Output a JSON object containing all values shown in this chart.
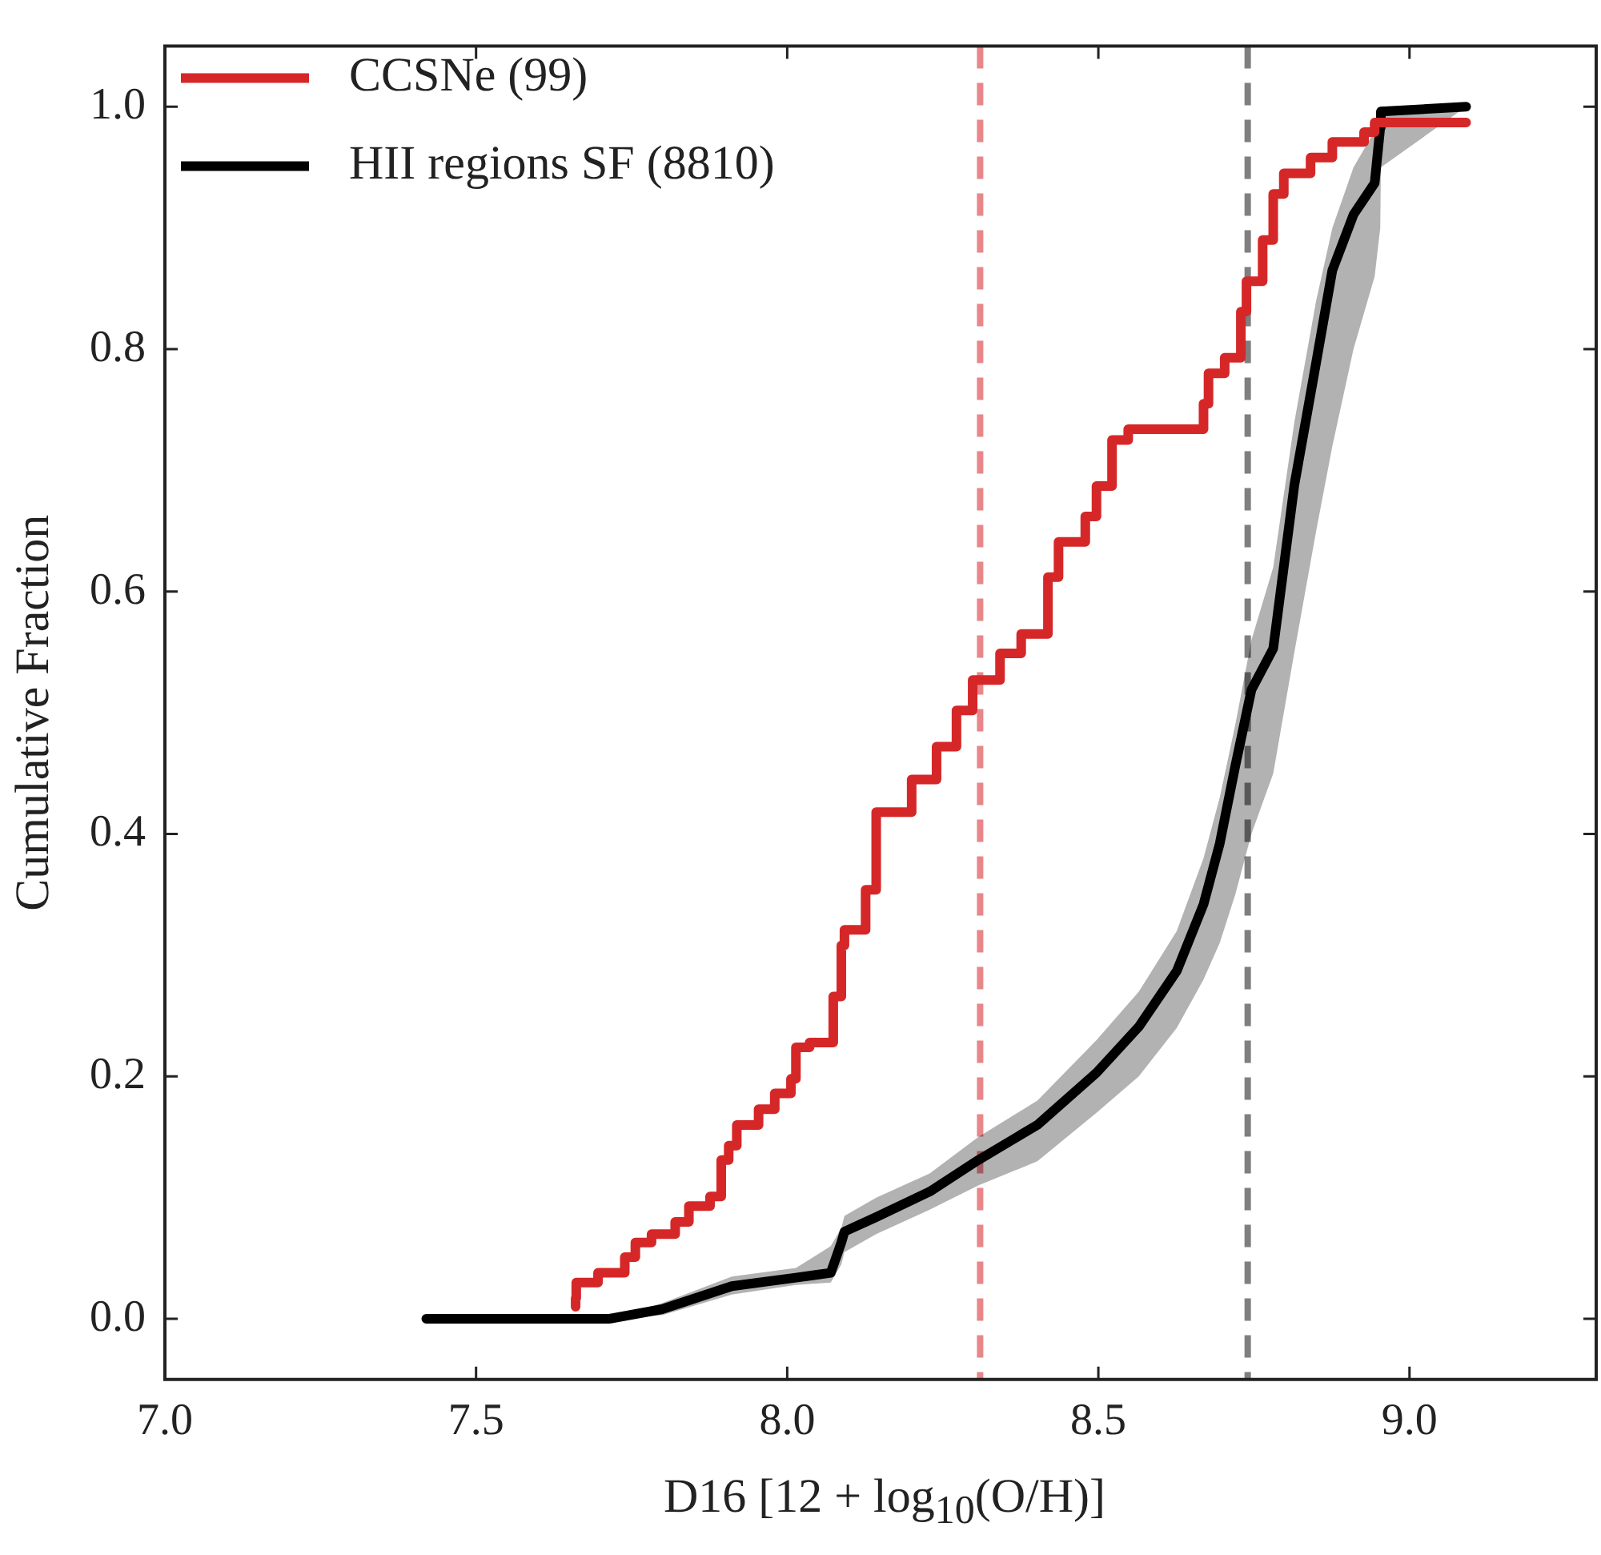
{
  "chart_data": {
    "type": "step",
    "xlabel": "D16 [12 + log$_{10}$(O/H)]",
    "ylabel": "Cumulative Fraction",
    "xlim": [
      7.0,
      9.3
    ],
    "ylim": [
      -0.05,
      1.05
    ],
    "xticks": [
      {
        "value": 7.0,
        "label": "7.0"
      },
      7.5,
      {
        "value": 8.0,
        "label": "8.0"
      },
      8.5,
      {
        "value": 9.0,
        "label": "9.0"
      }
    ],
    "yticks": [
      {
        "value": 0.0,
        "label": "0.0"
      },
      0.2,
      0.4,
      0.6,
      0.8,
      {
        "value": 1.0,
        "label": "1.0"
      }
    ],
    "legend": "top left",
    "grid": false,
    "marker": "none",
    "line_style": "solid",
    "series": [
      {
        "name": "CCSNe (99)",
        "color": "#d62728",
        "x": [
          7.66,
          7.661,
          7.696,
          7.739,
          7.756,
          7.782,
          7.82,
          7.842,
          7.876,
          7.894,
          7.906,
          7.919,
          7.954,
          7.98,
          8.006,
          8.014,
          8.036,
          8.074,
          8.087,
          8.092,
          8.126,
          8.143,
          8.2,
          8.24,
          8.272,
          8.298,
          8.342,
          8.376,
          8.419,
          8.436,
          8.479,
          8.497,
          8.522,
          8.548,
          8.669,
          8.677,
          8.703,
          8.729,
          8.738,
          8.764,
          8.781,
          8.798,
          8.841,
          8.876,
          8.927,
          8.944,
          8.988,
          9.091
        ],
        "values": [
          0.01,
          0.017,
          0.03,
          0.038,
          0.051,
          0.063,
          0.07,
          0.08,
          0.093,
          0.101,
          0.131,
          0.143,
          0.16,
          0.173,
          0.186,
          0.198,
          0.224,
          0.228,
          0.266,
          0.308,
          0.321,
          0.354,
          0.418,
          0.445,
          0.472,
          0.502,
          0.527,
          0.549,
          0.565,
          0.612,
          0.641,
          0.662,
          0.687,
          0.725,
          0.734,
          0.755,
          0.78,
          0.793,
          0.831,
          0.856,
          0.89,
          0.928,
          0.945,
          0.958,
          0.971,
          0.979,
          0.987,
          0.987
        ]
      },
      {
        "name": "HII regions SF (8810)",
        "color": "#000000",
        "type": "line",
        "x": [
          7.42,
          7.713,
          7.799,
          7.911,
          8.014,
          8.07,
          8.087,
          8.092,
          8.143,
          8.229,
          8.307,
          8.402,
          8.497,
          8.565,
          8.626,
          8.669,
          8.695,
          8.72,
          8.746,
          8.781,
          8.815,
          8.85,
          8.876,
          8.91,
          8.944,
          8.953,
          8.954,
          9.091
        ],
        "values": [
          0.0,
          0.0,
          0.008,
          0.027,
          0.034,
          0.038,
          0.063,
          0.072,
          0.084,
          0.105,
          0.131,
          0.16,
          0.203,
          0.241,
          0.287,
          0.342,
          0.392,
          0.456,
          0.519,
          0.553,
          0.688,
          0.789,
          0.865,
          0.911,
          0.937,
          0.983,
          0.996,
          1.0
        ],
        "lower": [
          0.0,
          0.0,
          0.003,
          0.02,
          0.028,
          0.03,
          0.045,
          0.055,
          0.07,
          0.09,
          0.11,
          0.13,
          0.17,
          0.2,
          0.24,
          0.28,
          0.31,
          0.35,
          0.4,
          0.45,
          0.55,
          0.65,
          0.72,
          0.8,
          0.86,
          0.9,
          0.95,
          1.0
        ],
        "upper": [
          0.0,
          0.0,
          0.013,
          0.035,
          0.042,
          0.06,
          0.075,
          0.085,
          0.1,
          0.12,
          0.15,
          0.18,
          0.23,
          0.27,
          0.32,
          0.38,
          0.43,
          0.49,
          0.56,
          0.62,
          0.74,
          0.84,
          0.9,
          0.95,
          0.98,
          1.0,
          1.0,
          1.0
        ]
      }
    ],
    "ref_lines": [
      {
        "axis": "x",
        "value": 8.31,
        "color": "#e8868a",
        "line_style": "dashed"
      },
      {
        "axis": "x",
        "value": 8.74,
        "color": "#7f7f7f",
        "line_style": "dashed"
      }
    ]
  }
}
